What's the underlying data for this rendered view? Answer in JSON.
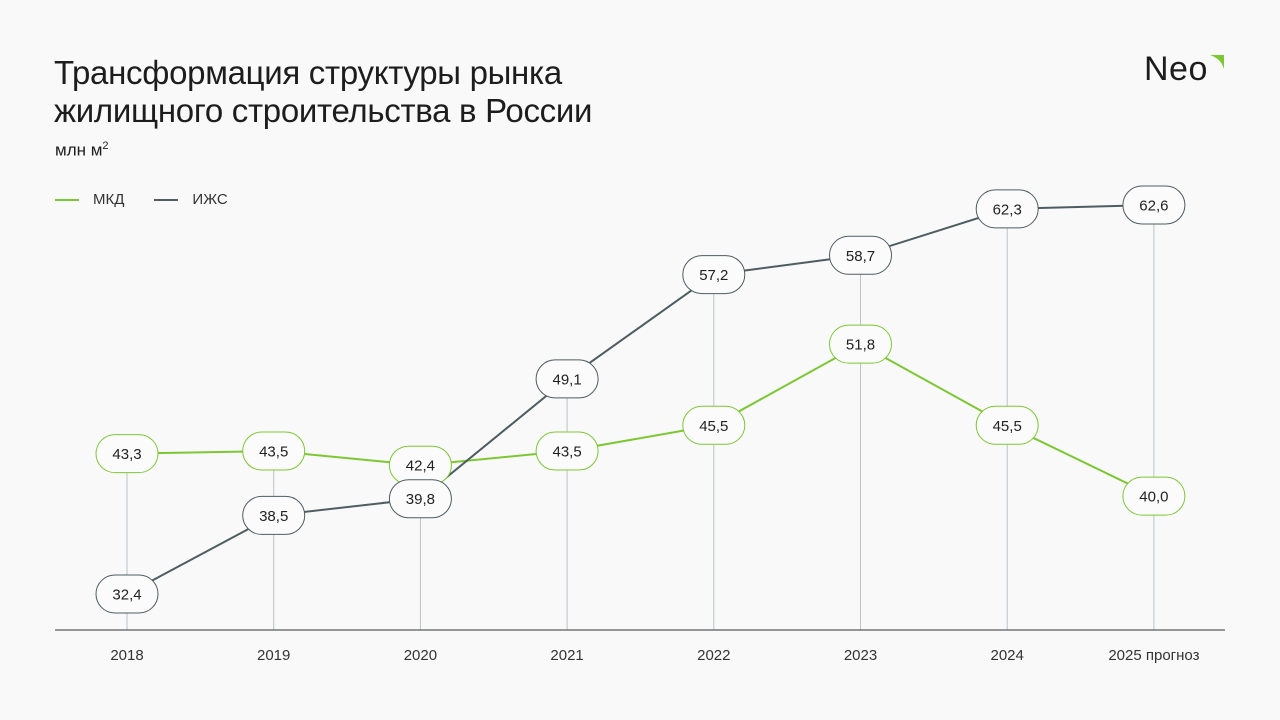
{
  "header": {
    "title_line1": "Трансформация структуры рынка",
    "title_line2": "жилищного строительства в России",
    "unit": "млн м",
    "unit_sup": "2",
    "logo": "Neo"
  },
  "colors": {
    "mkd": "#7dc832",
    "izhs": "#4d5d61",
    "grid": "#b9c4c6",
    "axis": "#333333"
  },
  "chart_data": {
    "type": "line",
    "title": "Трансформация структуры рынка жилищного строительства в России",
    "ylabel": "млн м2",
    "categories": [
      "2018",
      "2019",
      "2020",
      "2021",
      "2022",
      "2023",
      "2024",
      "2025 прогноз"
    ],
    "series": [
      {
        "name": "МКД",
        "values": [
          43.3,
          43.5,
          42.4,
          43.5,
          45.5,
          51.8,
          45.5,
          40.0
        ],
        "labels": [
          "43,3",
          "43,5",
          "42,4",
          "43,5",
          "45,5",
          "51,8",
          "45,5",
          "40,0"
        ]
      },
      {
        "name": "ИЖС",
        "values": [
          32.4,
          38.5,
          39.8,
          49.1,
          57.2,
          58.7,
          62.3,
          62.6
        ],
        "labels": [
          "32,4",
          "38,5",
          "39,8",
          "49,1",
          "57,2",
          "58,7",
          "62,3",
          "62,6"
        ]
      }
    ],
    "legend": "top-left",
    "grid": false,
    "data_labels": true
  }
}
